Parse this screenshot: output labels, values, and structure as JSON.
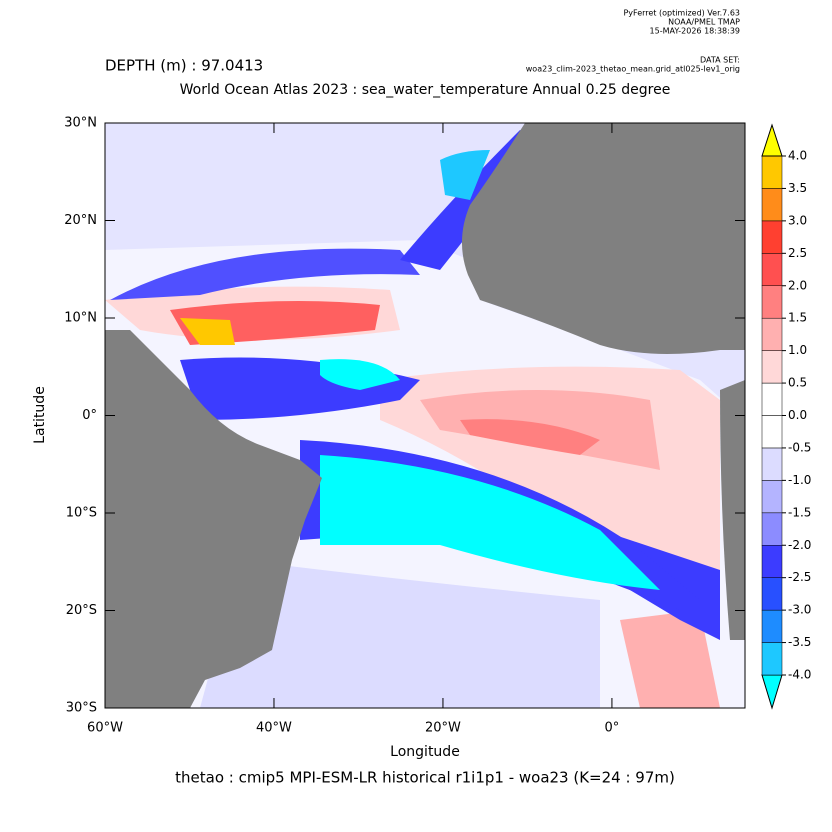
{
  "chart_data": {
    "type": "map",
    "header": [
      "PyFerret (optimized) Ver.7.63",
      "NOAA/PMEL TMAP",
      "15-MAY-2026 18:38:39"
    ],
    "dataset_label": "DATA SET:",
    "dataset": "woa23_clim-2023_thetao_mean.grid_atl025-lev1_orig",
    "depth": "DEPTH (m) : 97.0413",
    "title": "World Ocean Atlas 2023 : sea_water_temperature Annual  0.25 degree",
    "xlabel": "Longitude",
    "ylabel": "Latitude",
    "footer": "thetao : cmip5 MPI-ESM-LR historical r1i1p1 - woa23  (K=24 : 97m)",
    "xlim": [
      -60,
      15.75
    ],
    "ylim": [
      -30,
      30
    ],
    "xticks": [
      {
        "value": -60,
        "label": "60°W"
      },
      {
        "value": -40,
        "label": "40°W"
      },
      {
        "value": -20,
        "label": "20°W"
      },
      {
        "value": 0,
        "label": "0°"
      }
    ],
    "yticks": [
      {
        "value": 30,
        "label": "30°N"
      },
      {
        "value": 20,
        "label": "20°N"
      },
      {
        "value": 10,
        "label": "10°N"
      },
      {
        "value": 0,
        "label": "0°"
      },
      {
        "value": -10,
        "label": "10°S"
      },
      {
        "value": -20,
        "label": "20°S"
      },
      {
        "value": -30,
        "label": "30°S"
      }
    ],
    "colorbar": {
      "levels": [
        {
          "value": -4,
          "label": "-4.0"
        },
        {
          "value": -3.5,
          "label": "-3.5"
        },
        {
          "value": -3,
          "label": "-3.0"
        },
        {
          "value": -2.5,
          "label": "-2.5"
        },
        {
          "value": -2,
          "label": "-2.0"
        },
        {
          "value": -1.5,
          "label": "-1.5"
        },
        {
          "value": -1,
          "label": "-1.0"
        },
        {
          "value": -0.5,
          "label": "-0.5"
        },
        {
          "value": 0,
          "label": "0.0"
        },
        {
          "value": 0.5,
          "label": "0.5"
        },
        {
          "value": 1,
          "label": "1.0"
        },
        {
          "value": 1.5,
          "label": "1.5"
        },
        {
          "value": 2,
          "label": "2.0"
        },
        {
          "value": 2.5,
          "label": "2.5"
        },
        {
          "value": 3,
          "label": "3.0"
        },
        {
          "value": 3.5,
          "label": "3.5"
        },
        {
          "value": 4,
          "label": "4.0"
        }
      ],
      "colors": [
        "#00ffff",
        "#1ec8ff",
        "#1e8cff",
        "#2850ff",
        "#3c3cff",
        "#8c8cff",
        "#b4b4ff",
        "#dcdcff",
        "#ffffff",
        "#ffffff",
        "#ffd8d8",
        "#ffb0b0",
        "#ff8080",
        "#ff5050",
        "#ff4030",
        "#ff8c1a",
        "#ffc800",
        "#ffff00"
      ]
    }
  }
}
